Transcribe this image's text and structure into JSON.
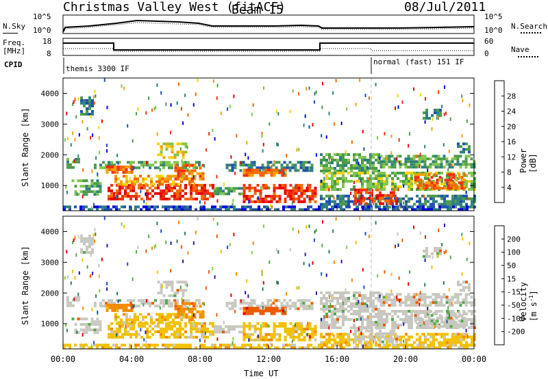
{
  "header": {
    "title": "Christmas Valley West (fitACF)",
    "beam": "Beam 15",
    "date": "08/Jul/2011"
  },
  "strip_panels": {
    "nsky_label": "N.Sky",
    "nsky_ticks": [
      "10^5",
      "10^0"
    ],
    "nsearch_label": "N.Search",
    "nsearch_ticks": [
      "10^5",
      "10^0"
    ],
    "freq_label_1": "Freq.",
    "freq_label_2": "[MHz]",
    "freq_ticks": [
      "18",
      "8"
    ],
    "nave_label": "Nave",
    "nave_ticks": [
      "60",
      "0"
    ],
    "cpid_label": "CPID",
    "cpid_segments": [
      "themis 3300 IF",
      "normal (fast) 151 IF"
    ]
  },
  "colorbars": {
    "power": {
      "label": "Power [dB]",
      "ticks": [
        "28",
        "24",
        "20",
        "16",
        "12",
        "8",
        "4"
      ],
      "colors": [
        "#0000e6",
        "#1f4fb0",
        "#2e7f7f",
        "#4c9a4c",
        "#7fc64c",
        "#f2d20a",
        "#f5a000",
        "#f56a00",
        "#f03010",
        "#e60000"
      ]
    },
    "velocity": {
      "label": "Velocity [m s",
      "label_sup": "-1",
      "label_end": "]",
      "ticks": [
        "200",
        "100",
        "50",
        "15",
        "-15",
        "-50",
        "-100",
        "-200"
      ],
      "colors": [
        "#1a1aa8",
        "#1e4ec8",
        "#2f7f4f",
        "#55a84c",
        "#86cf3d",
        "#c8c8c0",
        "#f2c000",
        "#f28c00",
        "#ee5a00",
        "#e00000"
      ]
    }
  },
  "chart_data": [
    {
      "type": "heatmap",
      "name": "power",
      "ylabel": "Slant Range [km]",
      "y_ticks": [
        "4000",
        "3000",
        "2000",
        "1000"
      ],
      "ylim": [
        180,
        4500
      ],
      "xlim": [
        0,
        24
      ]
    },
    {
      "type": "heatmap",
      "name": "velocity",
      "ylabel": "Slant Range [km]",
      "y_ticks": [
        "4000",
        "3000",
        "2000",
        "1000"
      ],
      "ylim": [
        180,
        4500
      ],
      "xlim": [
        0,
        24
      ],
      "x_ticks": [
        "00:00",
        "04:00",
        "08:00",
        "12:00",
        "16:00",
        "20:00",
        "00:00"
      ],
      "xlabel": "Time UT"
    }
  ]
}
